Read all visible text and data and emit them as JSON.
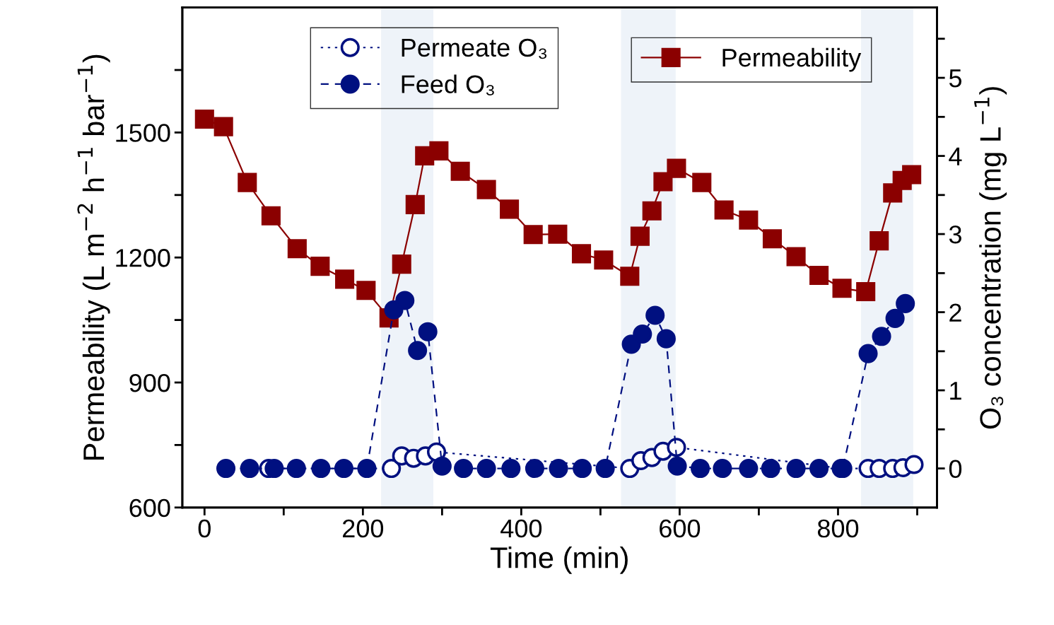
{
  "chart_data": {
    "type": "line",
    "xlabel": "Time (min)",
    "ylabel": "Permeability (L m$^{−2}$ h$^{−1}$ bar$^{−1}$)",
    "y2label": "O₃ concentration (mg L$^{−1}$)",
    "xlim": [
      -28,
      925
    ],
    "xticks": [
      0,
      {
        "value": 100,
        "label": null
      },
      200,
      {
        "value": 300,
        "label": null
      },
      400,
      {
        "value": 500,
        "label": null
      },
      600,
      {
        "value": 700,
        "label": null
      },
      800,
      {
        "value": 900,
        "label": null
      }
    ],
    "ylim": [
      600,
      1800
    ],
    "yticks": [
      600,
      {
        "value": 750,
        "label": null
      },
      900,
      {
        "value": 1050,
        "label": null
      },
      1200,
      {
        "value": 1350,
        "label": null
      },
      1500,
      {
        "value": 1650,
        "label": null
      }
    ],
    "y2lim": [
      -0.5,
      5.9
    ],
    "y2ticks": [
      0,
      {
        "value": 0.5,
        "label": null
      },
      1,
      {
        "value": 1.5,
        "label": null
      },
      2,
      {
        "value": 2.5,
        "label": null
      },
      3,
      {
        "value": 3.5,
        "label": null
      },
      4,
      {
        "value": 4.5,
        "label": null
      },
      5,
      {
        "value": 5.5,
        "label": null
      }
    ],
    "grid": false,
    "legend": "top",
    "bands": [
      {
        "axis": "x",
        "from": 223,
        "to": 289,
        "color": "#eef3f9"
      },
      {
        "axis": "x",
        "from": 526,
        "to": 595,
        "color": "#eef3f9"
      },
      {
        "axis": "x",
        "from": 829,
        "to": 895,
        "color": "#eef3f9"
      }
    ],
    "series": [
      {
        "name": "Permeate O₃",
        "axis": "y2",
        "color": "#001080",
        "marker": "circle",
        "line_style": "dotted",
        "x": [
          81,
          236,
          249,
          264,
          279,
          293,
          537,
          551,
          565,
          579,
          596,
          804,
          838,
          852,
          869,
          882,
          896
        ],
        "values": [
          0,
          0,
          0.16,
          0.13,
          0.16,
          0.21,
          0,
          0.1,
          0.14,
          0.22,
          0.27,
          0,
          0,
          0,
          0,
          0.01,
          0.05
        ]
      },
      {
        "name": "Feed O₃",
        "axis": "y2",
        "color": "#001080",
        "marker": "circle",
        "line_style": "dashed",
        "x": [
          27,
          57,
          88,
          116,
          147,
          176,
          205,
          239,
          253,
          269,
          282,
          300,
          327,
          356,
          387,
          417,
          447,
          477,
          506,
          539,
          553,
          569,
          583,
          597,
          626,
          654,
          687,
          715,
          747,
          776,
          806,
          838,
          855,
          872,
          885
        ],
        "values": [
          0,
          0,
          0,
          0,
          0,
          0,
          0,
          2.03,
          2.15,
          1.51,
          1.75,
          0.03,
          0,
          0,
          0,
          0,
          0,
          0,
          0,
          1.59,
          1.72,
          1.96,
          1.66,
          0.03,
          0,
          0,
          0,
          0,
          0,
          0,
          0,
          1.47,
          1.69,
          1.92,
          2.11
        ]
      },
      {
        "name": "Permeability",
        "axis": "y",
        "color": "#8b0000",
        "marker": "square",
        "line_style": "solid",
        "x": [
          0,
          24,
          54,
          84,
          117,
          146,
          177,
          204,
          233,
          249,
          266,
          278,
          296,
          323,
          356,
          385,
          415,
          446,
          476,
          504,
          537,
          550,
          565,
          579,
          596,
          628,
          656,
          687,
          717,
          747,
          776,
          805,
          835,
          852,
          869,
          881,
          893
        ],
        "values": [
          1532,
          1514,
          1380,
          1300,
          1221,
          1179,
          1148,
          1121,
          1055,
          1184,
          1327,
          1444,
          1456,
          1407,
          1363,
          1316,
          1255,
          1256,
          1209,
          1194,
          1155,
          1251,
          1312,
          1382,
          1414,
          1380,
          1314,
          1290,
          1245,
          1202,
          1157,
          1126,
          1118,
          1240,
          1355,
          1385,
          1399
        ]
      }
    ]
  }
}
